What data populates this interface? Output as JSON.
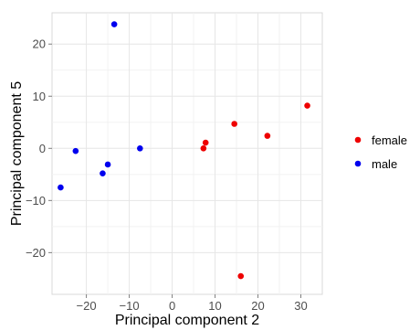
{
  "chart_data": {
    "type": "scatter",
    "title": "",
    "xlabel": "Principal component 2",
    "ylabel": "Principal component 5",
    "xlim": [
      -28,
      35
    ],
    "ylim": [
      -28,
      26
    ],
    "xticks": [
      -20,
      -10,
      0,
      10,
      20,
      30
    ],
    "yticks": [
      -20,
      -10,
      0,
      10,
      20
    ],
    "xtick_labels": [
      "−20",
      "−10",
      "0",
      "10",
      "20",
      "30"
    ],
    "ytick_labels": [
      "−20",
      "−10",
      "0",
      "10",
      "20"
    ],
    "grid": true,
    "legend_position": "right",
    "series": [
      {
        "name": "female",
        "color": "#ee0000",
        "points": [
          {
            "x": 7.3,
            "y": 0.0
          },
          {
            "x": 7.8,
            "y": 1.1
          },
          {
            "x": 14.5,
            "y": 4.7
          },
          {
            "x": 22.2,
            "y": 2.4
          },
          {
            "x": 31.5,
            "y": 8.2
          },
          {
            "x": 16.0,
            "y": -24.5
          }
        ]
      },
      {
        "name": "male",
        "color": "#0000ee",
        "points": [
          {
            "x": -13.5,
            "y": 23.8
          },
          {
            "x": -22.5,
            "y": -0.5
          },
          {
            "x": -7.5,
            "y": 0.0
          },
          {
            "x": -15.0,
            "y": -3.1
          },
          {
            "x": -16.2,
            "y": -4.8
          },
          {
            "x": -26.0,
            "y": -7.5
          }
        ]
      }
    ]
  }
}
